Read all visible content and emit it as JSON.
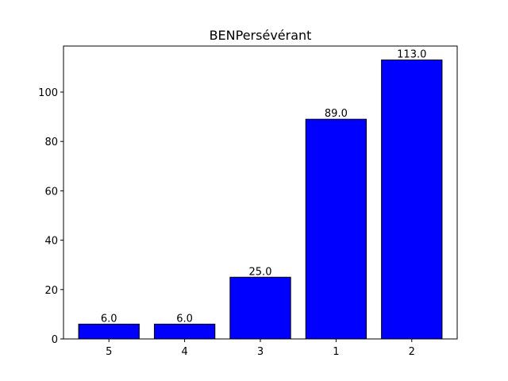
{
  "chart_data": {
    "type": "bar",
    "title": "BENPersévérant",
    "xlabel": "",
    "ylabel": "",
    "categories": [
      "5",
      "4",
      "3",
      "1",
      "2"
    ],
    "values": [
      6.0,
      6.0,
      25.0,
      89.0,
      113.0
    ],
    "data_labels": [
      "6.0",
      "6.0",
      "25.0",
      "89.0",
      "113.0"
    ],
    "ylim": [
      0,
      118.65
    ],
    "yticks": [
      0,
      20,
      40,
      60,
      80,
      100
    ],
    "grid": false,
    "legend": "none",
    "bar_color": "#0000ff",
    "bar_edge_color": "#000000"
  }
}
